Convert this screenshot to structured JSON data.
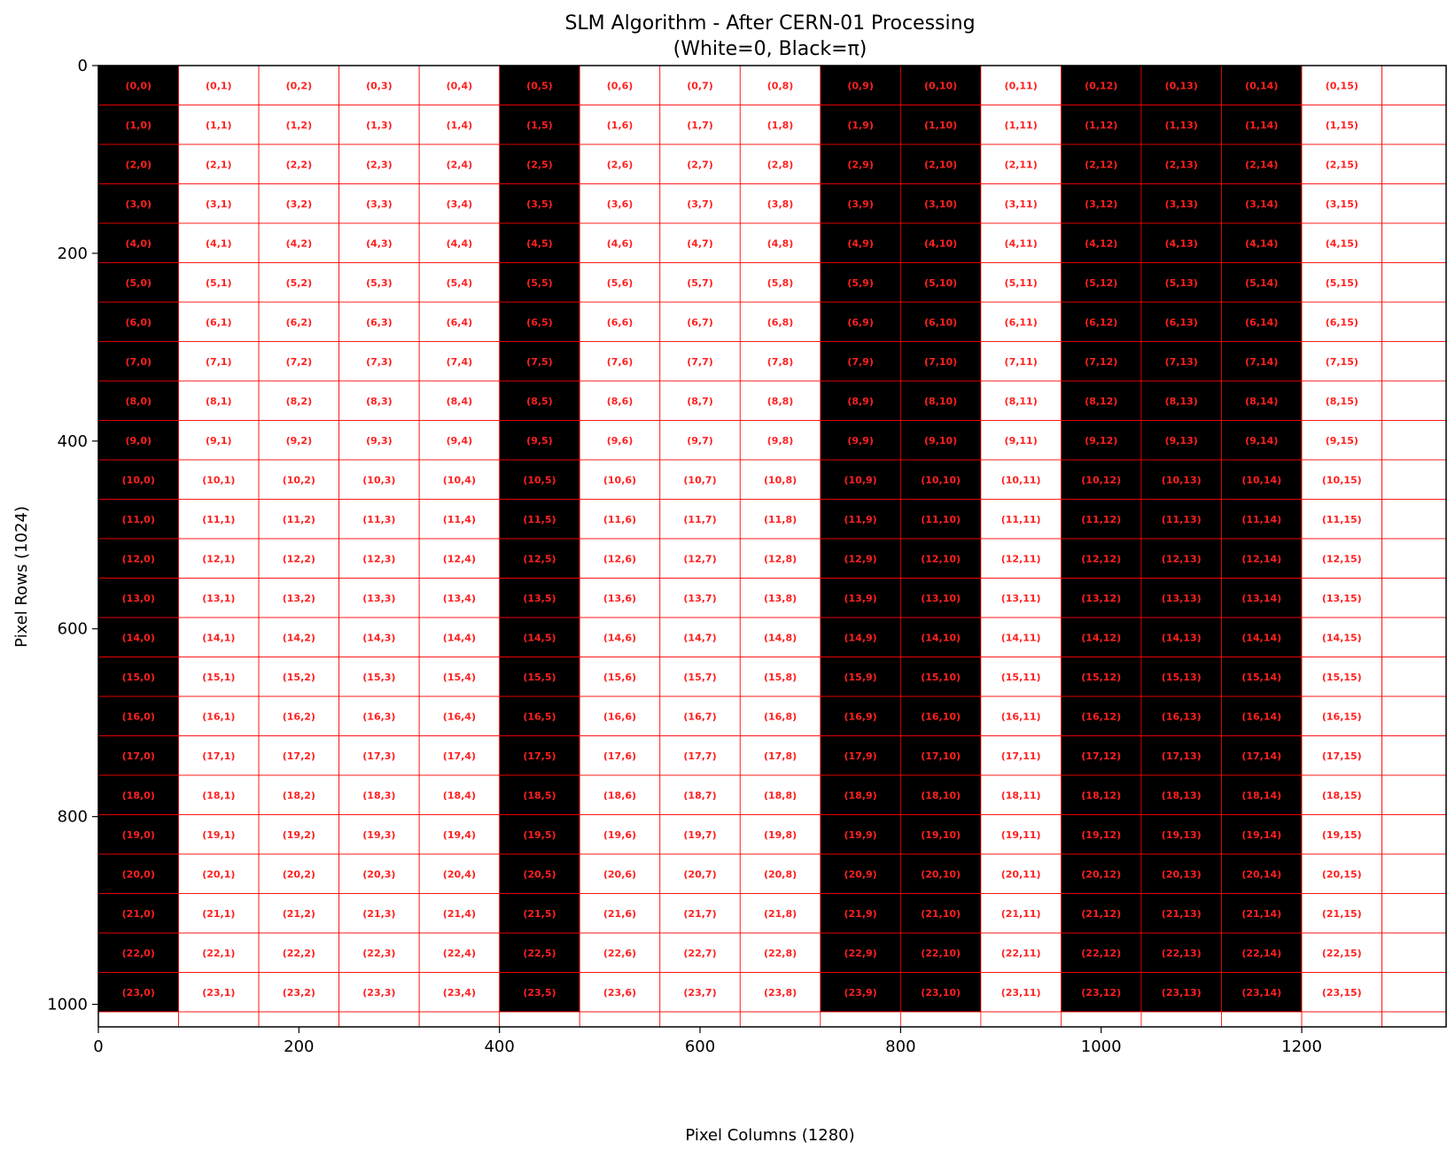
{
  "chart_data": {
    "type": "heatmap",
    "title": "SLM Algorithm - After CERN-01 Processing",
    "subtitle": "(White=0, Black=π)",
    "xlabel": "Pixel Columns (1280)",
    "ylabel": "Pixel Rows (1024)",
    "xlim": [
      0,
      1344
    ],
    "ylim": [
      1024,
      0
    ],
    "xticks": [
      0,
      200,
      400,
      600,
      800,
      1000,
      1200
    ],
    "yticks": [
      0,
      200,
      400,
      600,
      800,
      1000
    ],
    "cell_width": 80,
    "cell_height": 42,
    "grid_rows": 24,
    "grid_cols": 16,
    "pattern_width": 1280,
    "pattern_height": 1008,
    "grid_line_color": "#ff0000",
    "label_color": "#ff2020",
    "black_columns": [
      0,
      5,
      9,
      10,
      12,
      13,
      14
    ],
    "phase_values": {
      "white": 0,
      "black": "π"
    }
  }
}
